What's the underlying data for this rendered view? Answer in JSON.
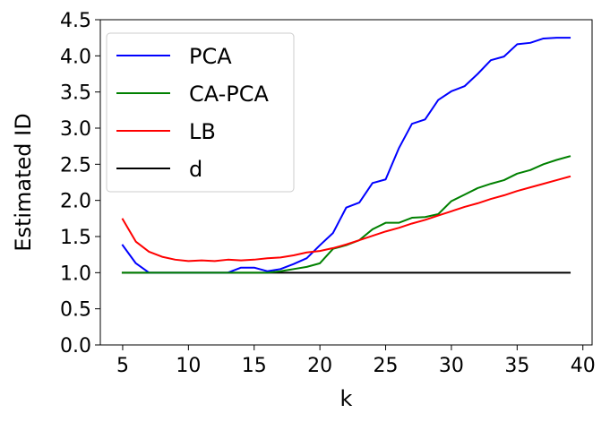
{
  "chart_data": {
    "type": "line",
    "title": "",
    "xlabel": "k",
    "ylabel": "Estimated ID",
    "xlim": [
      3.3,
      40.7
    ],
    "ylim": [
      0,
      4.5
    ],
    "xticks": [
      5,
      10,
      15,
      20,
      25,
      30,
      35,
      40
    ],
    "yticks": [
      0.0,
      0.5,
      1.0,
      1.5,
      2.0,
      2.5,
      3.0,
      3.5,
      4.0,
      4.5
    ],
    "xtick_labels": [
      "5",
      "10",
      "15",
      "20",
      "25",
      "30",
      "35",
      "40"
    ],
    "ytick_labels": [
      "0.0",
      "0.5",
      "1.0",
      "1.5",
      "2.0",
      "2.5",
      "3.0",
      "3.5",
      "4.0",
      "4.5"
    ],
    "grid": false,
    "legend_position": "top-left",
    "x": [
      5,
      6,
      7,
      8,
      9,
      10,
      11,
      12,
      13,
      14,
      15,
      16,
      17,
      18,
      19,
      20,
      21,
      22,
      23,
      24,
      25,
      26,
      27,
      28,
      29,
      30,
      31,
      32,
      33,
      34,
      35,
      36,
      37,
      38,
      39
    ],
    "series": [
      {
        "name": "PCA",
        "color": "#0000ff",
        "values": [
          1.38,
          1.13,
          1.0,
          1.0,
          1.0,
          1.0,
          1.0,
          1.0,
          1.0,
          1.07,
          1.07,
          1.02,
          1.05,
          1.12,
          1.2,
          1.38,
          1.55,
          1.9,
          1.97,
          2.24,
          2.29,
          2.72,
          3.06,
          3.12,
          3.39,
          3.51,
          3.58,
          3.75,
          3.94,
          3.99,
          4.16,
          4.18,
          4.24,
          4.25,
          4.25
        ]
      },
      {
        "name": "CA-PCA",
        "color": "#008000",
        "values": [
          1.0,
          1.0,
          1.0,
          1.0,
          1.0,
          1.0,
          1.0,
          1.0,
          1.0,
          1.0,
          1.0,
          1.0,
          1.02,
          1.05,
          1.08,
          1.13,
          1.33,
          1.38,
          1.45,
          1.6,
          1.69,
          1.69,
          1.76,
          1.77,
          1.81,
          1.99,
          2.08,
          2.17,
          2.23,
          2.28,
          2.37,
          2.42,
          2.5,
          2.56,
          2.61
        ]
      },
      {
        "name": "LB",
        "color": "#ff0000",
        "values": [
          1.74,
          1.43,
          1.29,
          1.22,
          1.18,
          1.16,
          1.17,
          1.16,
          1.18,
          1.17,
          1.18,
          1.2,
          1.21,
          1.24,
          1.28,
          1.3,
          1.34,
          1.39,
          1.45,
          1.51,
          1.57,
          1.62,
          1.68,
          1.73,
          1.79,
          1.85,
          1.91,
          1.96,
          2.02,
          2.07,
          2.13,
          2.18,
          2.23,
          2.28,
          2.33
        ]
      },
      {
        "name": "d",
        "color": "#000000",
        "values": [
          1,
          1,
          1,
          1,
          1,
          1,
          1,
          1,
          1,
          1,
          1,
          1,
          1,
          1,
          1,
          1,
          1,
          1,
          1,
          1,
          1,
          1,
          1,
          1,
          1,
          1,
          1,
          1,
          1,
          1,
          1,
          1,
          1,
          1,
          1
        ]
      }
    ]
  }
}
